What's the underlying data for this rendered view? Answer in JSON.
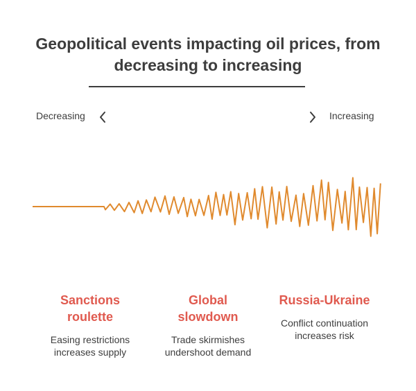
{
  "title": {
    "line1": "Geopolitical events impacting oil prices, from",
    "line2": "decreasing to increasing"
  },
  "axis": {
    "left_label": "Decreasing",
    "right_label": "Increasing",
    "left_icon": "chevron-left-icon",
    "right_icon": "chevron-right-icon"
  },
  "colors": {
    "wave": "#e08a2e",
    "event_title": "#e05a4f",
    "text": "#3d3d3d"
  },
  "events": [
    {
      "title_line1": "Sanctions",
      "title_line2": "roulette",
      "desc_line1": "Easing restrictions",
      "desc_line2": "increases supply"
    },
    {
      "title_line1": "Global",
      "title_line2": "slowdown",
      "desc_line1": "Trade skirmishes",
      "desc_line2": "undershoot demand"
    },
    {
      "title_line1": "Russia-Ukraine",
      "title_line2": "",
      "desc_line1": "Conflict continuation",
      "desc_line2": "increases risk"
    }
  ]
}
